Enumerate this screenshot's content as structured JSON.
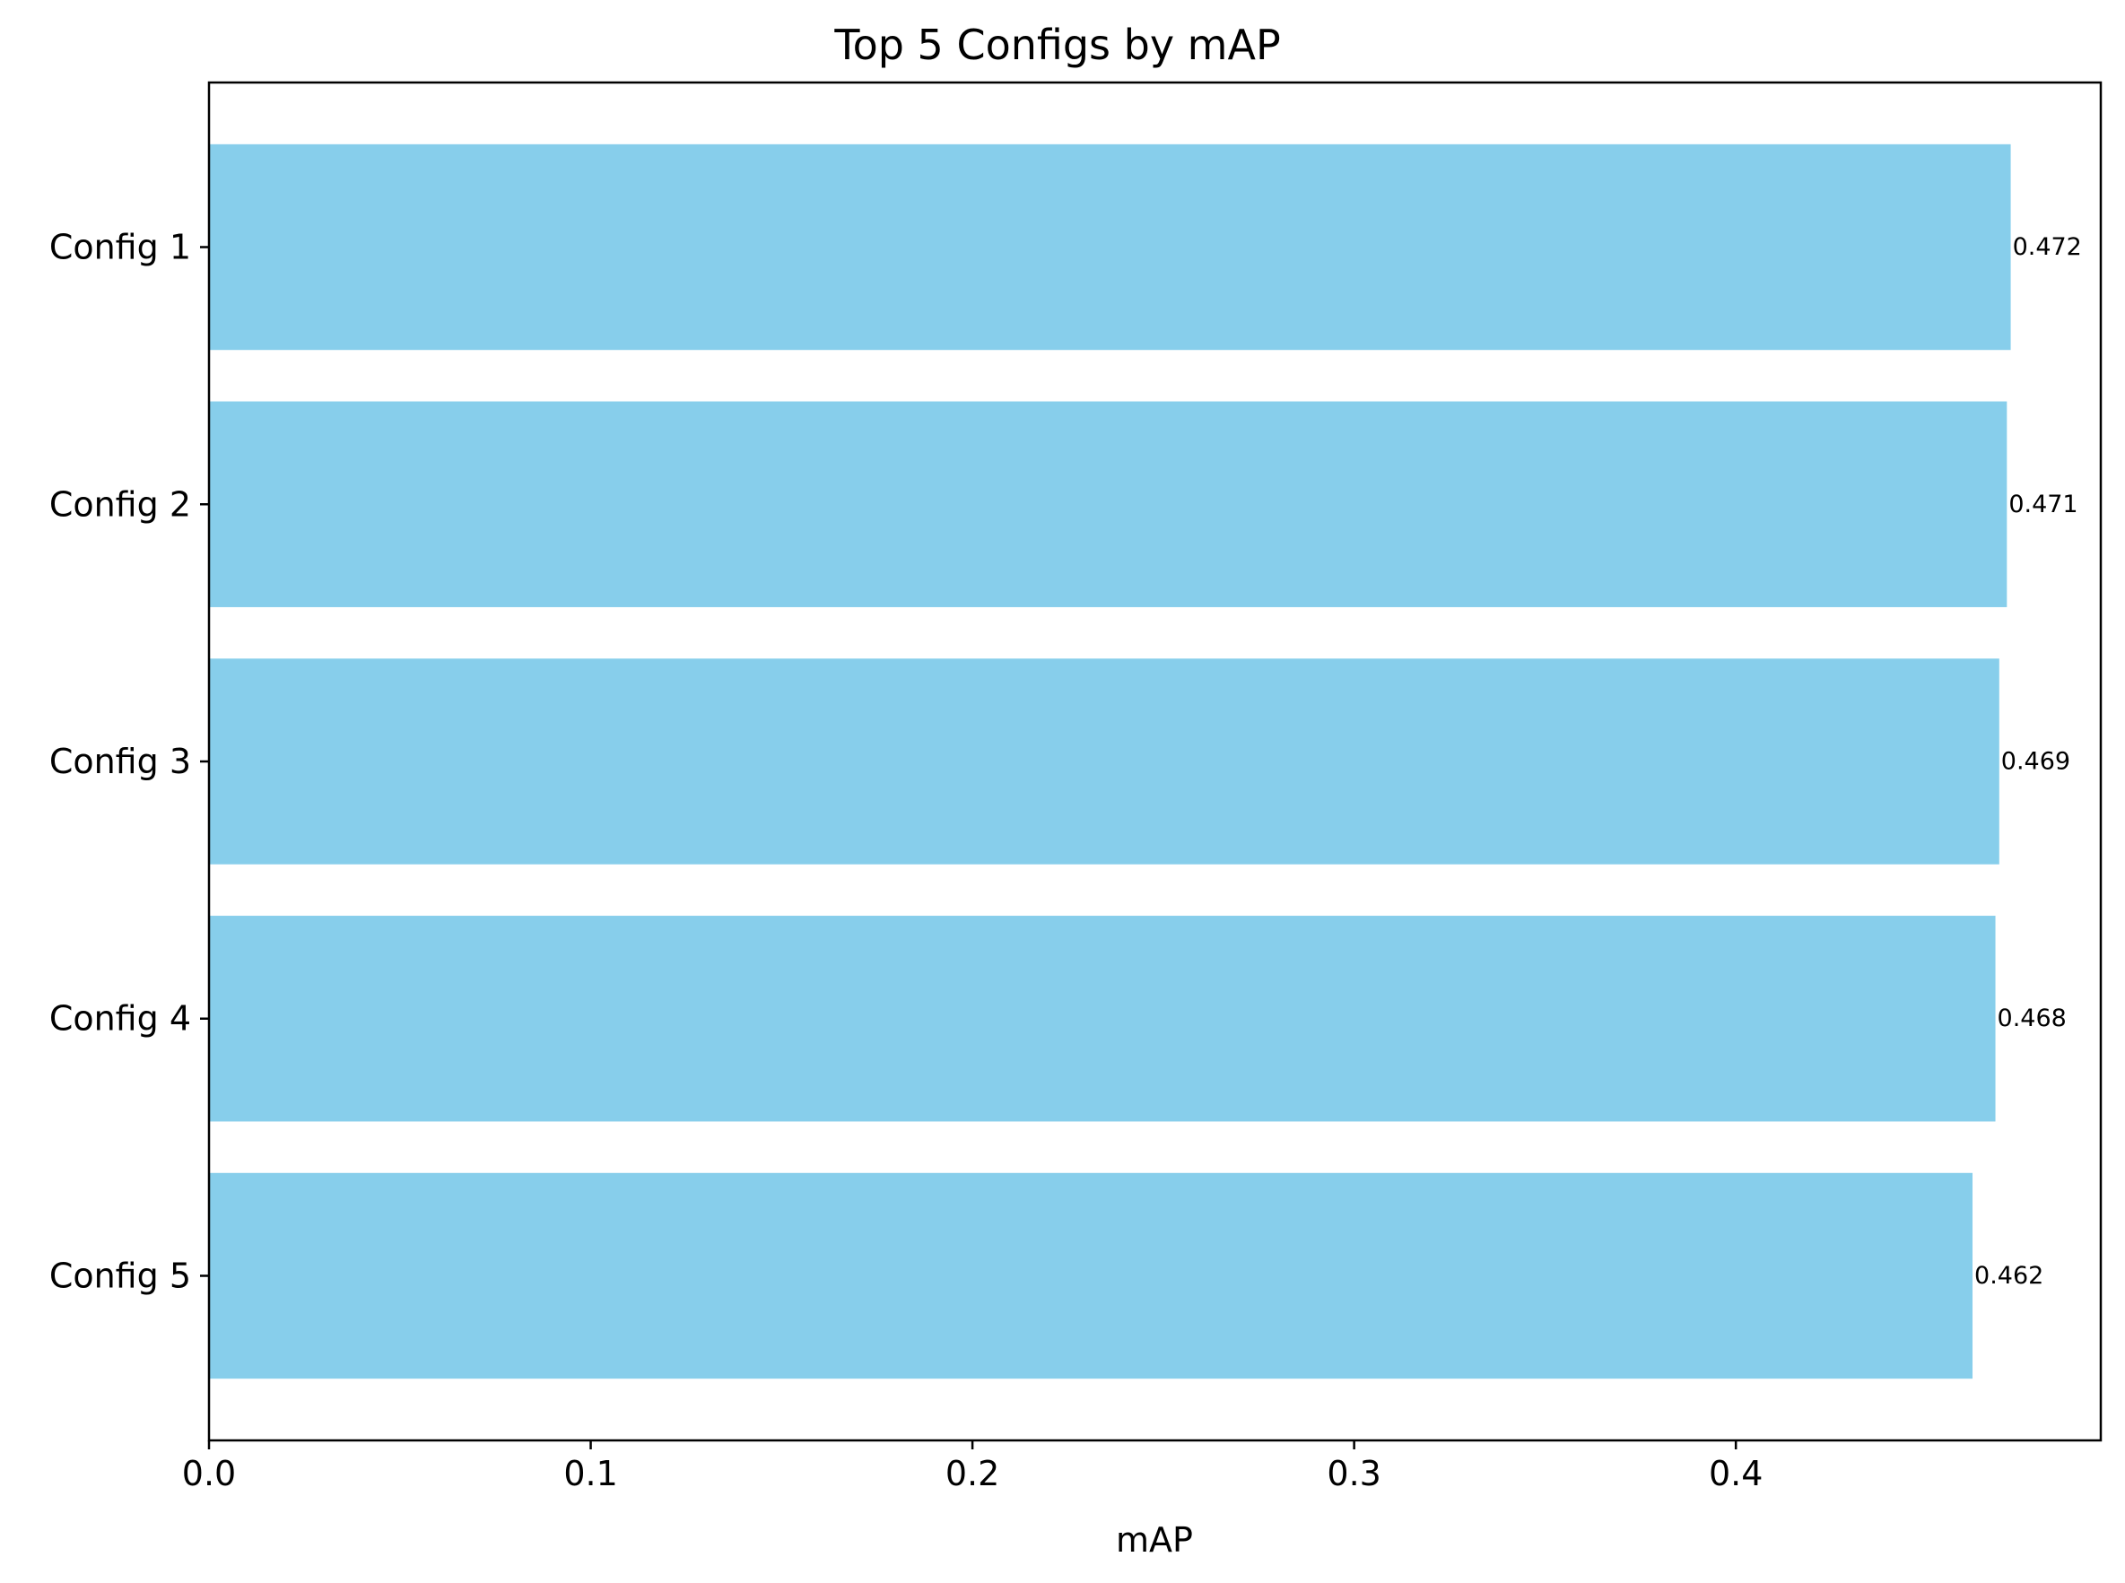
{
  "chart_data": {
    "type": "bar",
    "orientation": "horizontal",
    "title": "Top 5 Configs by mAP",
    "xlabel": "mAP",
    "ylabel": "",
    "categories": [
      "Config 1",
      "Config 2",
      "Config 3",
      "Config 4",
      "Config 5"
    ],
    "values": [
      0.472,
      0.471,
      0.469,
      0.468,
      0.462
    ],
    "data_labels": [
      "0.472",
      "0.471",
      "0.469",
      "0.468",
      "0.462"
    ],
    "xlim": [
      0,
      0.4956
    ],
    "xticks": [
      0.0,
      0.1,
      0.2,
      0.3,
      0.4
    ],
    "xtick_labels": [
      "0.0",
      "0.1",
      "0.2",
      "0.3",
      "0.4"
    ],
    "grid": false,
    "legend": "none",
    "bar_color": "#87CEEB"
  }
}
